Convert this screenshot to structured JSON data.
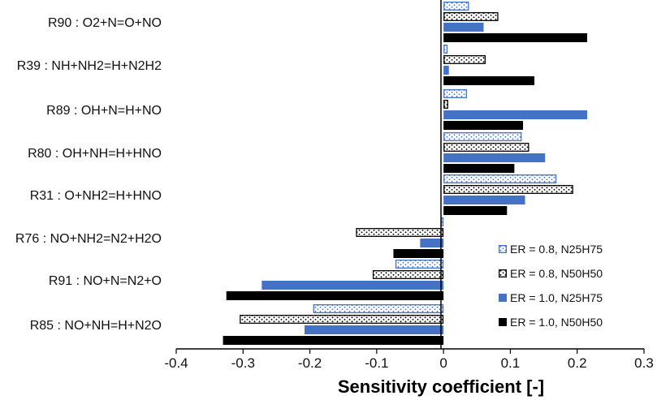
{
  "chart_data": {
    "type": "bar",
    "orientation": "horizontal",
    "title": "",
    "xlabel": "Sensitivity coefficient [-]",
    "ylabel": "",
    "xlim": [
      -0.4,
      0.3
    ],
    "x_ticks": [
      -0.4,
      -0.3,
      -0.2,
      -0.1,
      0,
      0.1,
      0.2,
      0.3
    ],
    "x_tick_labels": [
      "-0.4",
      "-0.3",
      "-0.2",
      "-0.1",
      "0",
      "0.1",
      "0.2",
      "0.3"
    ],
    "grid": false,
    "legend_position": "bottom-right",
    "categories": [
      "R90 : O2+N=O+NO",
      "R39 : NH+NH2=H+N2H2",
      "R89 : OH+N=H+NO",
      "R80 : OH+NH=H+HNO",
      "R31 : O+NH2=H+HNO",
      "R76 : NO+NH2=N2+H2O",
      "R91 : NO+N=N2+O",
      "R85 : NO+NH=H+N2O"
    ],
    "series": [
      {
        "name": "ER = 0.8, N25H75",
        "style": "dotted-blue",
        "values": [
          0.038,
          0.006,
          0.035,
          0.117,
          0.169,
          -0.004,
          -0.072,
          -0.195
        ]
      },
      {
        "name": "ER = 0.8, N50H50",
        "style": "dotted-black",
        "values": [
          0.082,
          0.063,
          0.007,
          0.128,
          0.194,
          -0.131,
          -0.106,
          -0.305
        ]
      },
      {
        "name": "ER = 1.0, N25H75",
        "style": "solid-blue",
        "values": [
          0.06,
          0.008,
          0.215,
          0.152,
          0.122,
          -0.035,
          -0.272,
          -0.208
        ]
      },
      {
        "name": "ER = 1.0, N50H50",
        "style": "solid-black",
        "values": [
          0.215,
          0.136,
          0.119,
          0.106,
          0.095,
          -0.075,
          -0.325,
          -0.33
        ]
      }
    ],
    "colors": {
      "blue": "#4472c4",
      "black": "#000000",
      "dot_bg": "#ffffff"
    }
  }
}
